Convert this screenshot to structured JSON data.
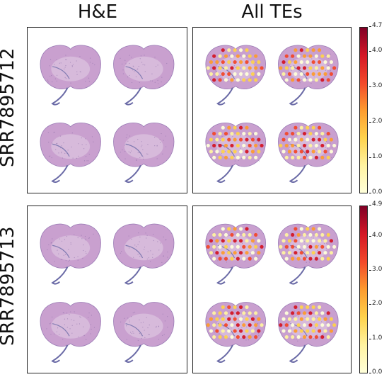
{
  "columns": {
    "left": "H&E",
    "right": "All TEs"
  },
  "rows": [
    {
      "label": "SRR7895712",
      "colorbar_ticks": [
        "4.7",
        "4.0",
        "3.0",
        "2.0",
        "1.0",
        "0.0"
      ],
      "colorbar_max": 4.7
    },
    {
      "label": "SRR7895713",
      "colorbar_ticks": [
        "4.9",
        "4.0",
        "3.0",
        "2.0",
        "1.0",
        "0.0"
      ],
      "colorbar_max": 4.9
    }
  ],
  "colors": {
    "tissue": "#c9a0cf",
    "tissue_edge": "#9a7bb5",
    "stain_dark": "#6a6aa6",
    "colormap": [
      "#ffffd9",
      "#fff3a0",
      "#fed24c",
      "#fd9b2f",
      "#f2482a",
      "#d41726",
      "#800026"
    ]
  }
}
